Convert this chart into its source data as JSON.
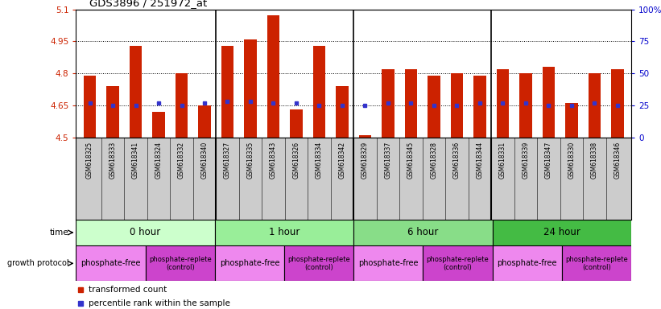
{
  "title": "GDS3896 / 251972_at",
  "samples": [
    "GSM618325",
    "GSM618333",
    "GSM618341",
    "GSM618324",
    "GSM618332",
    "GSM618340",
    "GSM618327",
    "GSM618335",
    "GSM618343",
    "GSM618326",
    "GSM618334",
    "GSM618342",
    "GSM618329",
    "GSM618337",
    "GSM618345",
    "GSM618328",
    "GSM618336",
    "GSM618344",
    "GSM618331",
    "GSM618339",
    "GSM618347",
    "GSM618330",
    "GSM618338",
    "GSM618346"
  ],
  "bar_values": [
    4.79,
    4.74,
    4.93,
    4.62,
    4.8,
    4.65,
    4.93,
    4.96,
    5.07,
    4.63,
    4.93,
    4.74,
    4.51,
    4.82,
    4.82,
    4.79,
    4.8,
    4.79,
    4.82,
    4.8,
    4.83,
    4.66,
    4.8,
    4.82
  ],
  "percentile_values": [
    4.66,
    4.65,
    4.65,
    4.66,
    4.65,
    4.66,
    4.67,
    4.67,
    4.66,
    4.66,
    4.65,
    4.65,
    4.65,
    4.66,
    4.66,
    4.65,
    4.65,
    4.66,
    4.66,
    4.66,
    4.65,
    4.65,
    4.66,
    4.65
  ],
  "ylim_left": [
    4.5,
    5.1
  ],
  "yticks_left": [
    4.5,
    4.65,
    4.8,
    4.95,
    5.1
  ],
  "ytick_labels_left": [
    "4.5",
    "4.65",
    "4.8",
    "4.95",
    "5.1"
  ],
  "ytick_labels_right": [
    "0",
    "25",
    "50",
    "75",
    "100%"
  ],
  "yticks_right": [
    0,
    25,
    50,
    75,
    100
  ],
  "bar_color": "#CC2200",
  "percentile_color": "#3333CC",
  "bg_color": "#FFFFFF",
  "sample_bg_color": "#CCCCCC",
  "time_groups": [
    {
      "label": "0 hour",
      "start": 0,
      "end": 6,
      "color": "#CCFFCC"
    },
    {
      "label": "1 hour",
      "start": 6,
      "end": 12,
      "color": "#99EE99"
    },
    {
      "label": "6 hour",
      "start": 12,
      "end": 18,
      "color": "#88DD88"
    },
    {
      "label": "24 hour",
      "start": 18,
      "end": 24,
      "color": "#44BB44"
    }
  ],
  "protocol_groups": [
    {
      "label": "phosphate-free",
      "start": 0,
      "end": 3,
      "color": "#EE88EE",
      "fontsize": 7
    },
    {
      "label": "phosphate-replete\n(control)",
      "start": 3,
      "end": 6,
      "color": "#CC44CC",
      "fontsize": 6
    },
    {
      "label": "phosphate-free",
      "start": 6,
      "end": 9,
      "color": "#EE88EE",
      "fontsize": 7
    },
    {
      "label": "phosphate-replete\n(control)",
      "start": 9,
      "end": 12,
      "color": "#CC44CC",
      "fontsize": 6
    },
    {
      "label": "phosphate-free",
      "start": 12,
      "end": 15,
      "color": "#EE88EE",
      "fontsize": 7
    },
    {
      "label": "phosphate-replete\n(control)",
      "start": 15,
      "end": 18,
      "color": "#CC44CC",
      "fontsize": 6
    },
    {
      "label": "phosphate-free",
      "start": 18,
      "end": 21,
      "color": "#EE88EE",
      "fontsize": 7
    },
    {
      "label": "phosphate-replete\n(control)",
      "start": 21,
      "end": 24,
      "color": "#CC44CC",
      "fontsize": 6
    }
  ],
  "group_boundaries": [
    6,
    12,
    18
  ],
  "legend_items": [
    {
      "label": "transformed count",
      "color": "#CC2200"
    },
    {
      "label": "percentile rank within the sample",
      "color": "#3333CC"
    }
  ]
}
